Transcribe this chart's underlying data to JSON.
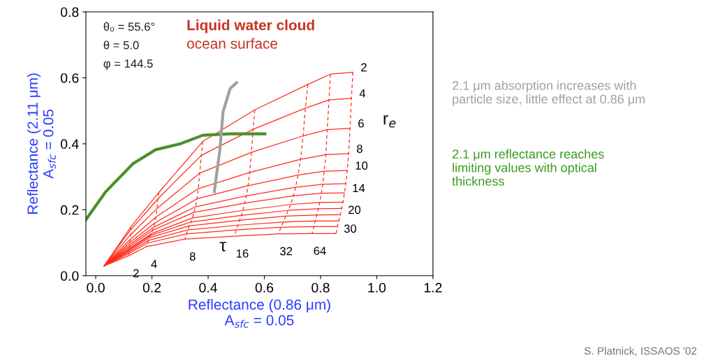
{
  "chart_data": {
    "type": "line",
    "xlabel": "Reflectance (0.86 μm)\nA$_{sfc}$ = 0.05",
    "ylabel": "Reflectance (2.11 μm)\nA$_{sfc}$ = 0.05",
    "xlim": [
      -0.035,
      1.2
    ],
    "ylim": [
      0,
      0.8
    ],
    "xticks": [
      {
        "value": 0,
        "label": "0.0"
      },
      0.2,
      0.4,
      0.6,
      0.8,
      {
        "value": 1,
        "label": "1.0"
      },
      1.2
    ],
    "yticks": [
      {
        "value": 0,
        "label": "0.0"
      },
      0.2,
      0.4,
      0.6,
      0.8
    ],
    "grid": false,
    "legend": false,
    "series": [
      {
        "name": "2",
        "color": "#ff2a1a",
        "line_style": "solid",
        "x": [
          0.03,
          0.125,
          0.225,
          0.381,
          0.566,
          0.755,
          0.835,
          0.915
        ],
        "values": [
          0.03,
          0.148,
          0.253,
          0.407,
          0.503,
          0.58,
          0.611,
          0.617
        ]
      },
      {
        "name": "4",
        "color": "#ff2a1a",
        "line_style": "solid",
        "x": [
          0.03,
          0.124,
          0.221,
          0.376,
          0.56,
          0.746,
          0.83,
          0.91
        ],
        "values": [
          0.03,
          0.139,
          0.233,
          0.365,
          0.444,
          0.508,
          0.533,
          0.538
        ]
      },
      {
        "name": "6",
        "color": "#ff2a1a",
        "line_style": "solid",
        "x": [
          0.03,
          0.124,
          0.218,
          0.37,
          0.554,
          0.738,
          0.824,
          0.905
        ],
        "values": [
          0.03,
          0.124,
          0.204,
          0.311,
          0.374,
          0.424,
          0.443,
          0.447
        ]
      },
      {
        "name": "8",
        "color": "#ff2a1a",
        "line_style": "solid",
        "x": [
          0.03,
          0.123,
          0.214,
          0.365,
          0.548,
          0.729,
          0.819,
          0.9
        ],
        "values": [
          0.03,
          0.11,
          0.178,
          0.264,
          0.313,
          0.353,
          0.367,
          0.37
        ]
      },
      {
        "name": "10",
        "color": "#ff2a1a",
        "line_style": "solid",
        "x": [
          0.03,
          0.122,
          0.21,
          0.36,
          0.542,
          0.72,
          0.813,
          0.895
        ],
        "values": [
          0.03,
          0.101,
          0.16,
          0.233,
          0.273,
          0.305,
          0.317,
          0.319
        ]
      },
      {
        "color": "#ff2a1a",
        "line_style": "solid",
        "x": [
          0.03,
          0.121,
          0.206,
          0.355,
          0.536,
          0.711,
          0.808,
          0.89
        ],
        "values": [
          0.03,
          0.094,
          0.147,
          0.209,
          0.242,
          0.268,
          0.277,
          0.279
        ]
      },
      {
        "name": "14",
        "color": "#ff2a1a",
        "line_style": "solid",
        "x": [
          0.03,
          0.121,
          0.203,
          0.349,
          0.53,
          0.703,
          0.803,
          0.885
        ],
        "values": [
          0.03,
          0.089,
          0.138,
          0.192,
          0.22,
          0.242,
          0.25,
          0.251
        ]
      },
      {
        "color": "#ff2a1a",
        "line_style": "solid",
        "x": [
          0.03,
          0.12,
          0.199,
          0.344,
          0.524,
          0.694,
          0.797,
          0.88
        ],
        "values": [
          0.03,
          0.083,
          0.128,
          0.175,
          0.198,
          0.216,
          0.222,
          0.223
        ]
      },
      {
        "color": "#ff2a1a",
        "line_style": "solid",
        "x": [
          0.03,
          0.119,
          0.195,
          0.339,
          0.518,
          0.685,
          0.792,
          0.875
        ],
        "values": [
          0.03,
          0.08,
          0.122,
          0.163,
          0.183,
          0.198,
          0.203,
          0.204
        ]
      },
      {
        "name": "20",
        "color": "#ff2a1a",
        "line_style": "solid",
        "x": [
          0.03,
          0.118,
          0.191,
          0.333,
          0.512,
          0.676,
          0.786,
          0.87
        ],
        "values": [
          0.03,
          0.076,
          0.115,
          0.151,
          0.168,
          0.181,
          0.184,
          0.185
        ]
      },
      {
        "color": "#ff2a1a",
        "line_style": "solid",
        "x": [
          0.03,
          0.118,
          0.188,
          0.328,
          0.506,
          0.668,
          0.781,
          0.865
        ],
        "values": [
          0.03,
          0.072,
          0.107,
          0.139,
          0.153,
          0.163,
          0.166,
          0.166
        ]
      },
      {
        "color": "#ff2a1a",
        "line_style": "solid",
        "x": [
          0.03,
          0.117,
          0.184,
          0.323,
          0.5,
          0.659,
          0.776,
          0.86
        ],
        "values": [
          0.03,
          0.067,
          0.099,
          0.127,
          0.139,
          0.147,
          0.149,
          0.149
        ]
      },
      {
        "name": "30",
        "color": "#ff2a1a",
        "line_style": "solid",
        "x": [
          0.03,
          0.116,
          0.18,
          0.317,
          0.494,
          0.65,
          0.77,
          0.855
        ],
        "values": [
          0.03,
          0.06,
          0.088,
          0.111,
          0.12,
          0.127,
          0.128,
          0.128
        ]
      },
      {
        "name": "2",
        "color": "#ff2a1a",
        "line_style": "dashed",
        "x": [
          0.125,
          0.124,
          0.124,
          0.123,
          0.122,
          0.121,
          0.121,
          0.12,
          0.119,
          0.118,
          0.118,
          0.117,
          0.116
        ],
        "values": [
          0.148,
          0.139,
          0.124,
          0.11,
          0.101,
          0.094,
          0.089,
          0.083,
          0.08,
          0.076,
          0.072,
          0.067,
          0.06
        ]
      },
      {
        "name": "4",
        "color": "#ff2a1a",
        "line_style": "dashed",
        "x": [
          0.225,
          0.221,
          0.218,
          0.214,
          0.21,
          0.206,
          0.203,
          0.199,
          0.195,
          0.191,
          0.188,
          0.184,
          0.18
        ],
        "values": [
          0.253,
          0.233,
          0.204,
          0.178,
          0.16,
          0.147,
          0.138,
          0.128,
          0.122,
          0.115,
          0.107,
          0.099,
          0.088
        ]
      },
      {
        "name": "8",
        "color": "#ff2a1a",
        "line_style": "dashed",
        "x": [
          0.381,
          0.376,
          0.37,
          0.365,
          0.36,
          0.355,
          0.349,
          0.344,
          0.339,
          0.333,
          0.328,
          0.323,
          0.317
        ],
        "values": [
          0.407,
          0.365,
          0.311,
          0.264,
          0.233,
          0.209,
          0.192,
          0.175,
          0.163,
          0.151,
          0.139,
          0.127,
          0.111
        ]
      },
      {
        "name": "16",
        "color": "#ff2a1a",
        "line_style": "dashed",
        "x": [
          0.566,
          0.56,
          0.554,
          0.548,
          0.542,
          0.536,
          0.53,
          0.524,
          0.518,
          0.512,
          0.506,
          0.5,
          0.494
        ],
        "values": [
          0.503,
          0.444,
          0.374,
          0.313,
          0.273,
          0.242,
          0.22,
          0.198,
          0.183,
          0.168,
          0.153,
          0.139,
          0.12
        ]
      },
      {
        "name": "32",
        "color": "#ff2a1a",
        "line_style": "dashed",
        "x": [
          0.755,
          0.746,
          0.738,
          0.729,
          0.72,
          0.711,
          0.703,
          0.694,
          0.685,
          0.676,
          0.668,
          0.659,
          0.65
        ],
        "values": [
          0.58,
          0.508,
          0.424,
          0.353,
          0.305,
          0.268,
          0.242,
          0.216,
          0.198,
          0.181,
          0.163,
          0.147,
          0.127
        ]
      },
      {
        "name": "64",
        "color": "#ff2a1a",
        "line_style": "dashed",
        "x": [
          0.835,
          0.83,
          0.824,
          0.819,
          0.813,
          0.808,
          0.803,
          0.797,
          0.792,
          0.786,
          0.781,
          0.776,
          0.77
        ],
        "values": [
          0.611,
          0.533,
          0.443,
          0.367,
          0.317,
          0.277,
          0.25,
          0.222,
          0.203,
          0.184,
          0.166,
          0.149,
          0.128
        ]
      },
      {
        "color": "#ff2a1a",
        "line_style": "dashed",
        "x": [
          0.915,
          0.91,
          0.905,
          0.9,
          0.895,
          0.89,
          0.885,
          0.88,
          0.875,
          0.87,
          0.865,
          0.86,
          0.855
        ],
        "values": [
          0.617,
          0.538,
          0.447,
          0.37,
          0.319,
          0.279,
          0.251,
          0.223,
          0.204,
          0.185,
          0.166,
          0.149,
          0.128
        ]
      },
      {
        "color": "#4a8f2a",
        "line_style": "solid",
        "x": [
          -0.035,
          0.036,
          0.133,
          0.213,
          0.301,
          0.381,
          0.478,
          0.602
        ],
        "values": [
          0.17,
          0.255,
          0.34,
          0.382,
          0.4,
          0.426,
          0.43,
          0.43
        ]
      },
      {
        "color": "#a0a0a0",
        "line_style": "solid",
        "x": [
          0.422,
          0.442,
          0.453,
          0.478,
          0.501
        ],
        "values": [
          0.255,
          0.383,
          0.496,
          0.567,
          0.585
        ]
      }
    ],
    "annotations": [
      "θ₀ = 55.6°",
      "θ = 5.0",
      "φ = 144.5",
      "Liquid water cloud",
      "ocean surface",
      "τ",
      "r$_{e}$",
      "2.1 μm absorption increases with\nparticle size, little effect at 0.86 μm",
      "2.1 μm reflectance reaches\nlimiting values with optical\nthickness",
      "S. Platnick, ISSAOS '02"
    ]
  }
}
